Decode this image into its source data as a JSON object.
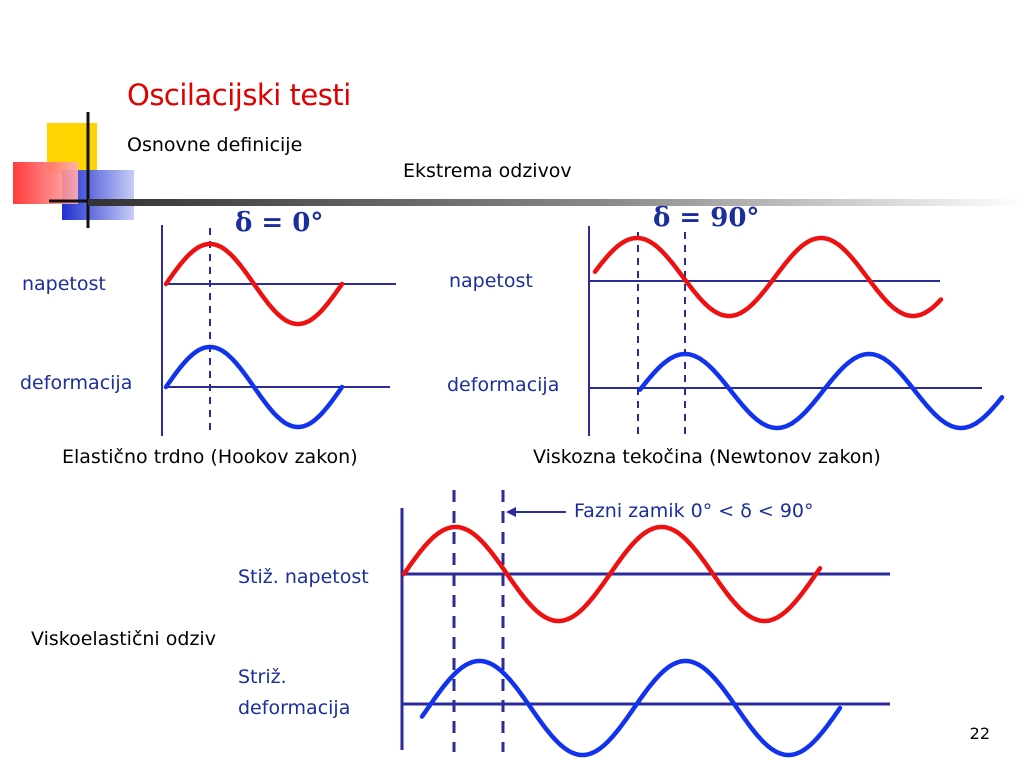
{
  "slide": {
    "title": "Oscilacijski testi",
    "subtitle": "Osnovne definicije",
    "heading": "Ekstrema odzivov",
    "page_number": "22"
  },
  "colors": {
    "accent_title": "#e00000",
    "stress_wave": "#ee1111",
    "strain_wave": "#1133ee",
    "axis": "#2b2b9a",
    "label": "#1b2e9c",
    "deco_yellow": "#ffd400",
    "deco_red": "#ff4a4a",
    "deco_blue": "#2b3bd6"
  },
  "elastic": {
    "delta": "δ = 0°",
    "stress_label": "napetost",
    "strain_label": "deformacija",
    "caption": "Elastično trdno (Hookov zakon)"
  },
  "viscous": {
    "delta": "δ = 90°",
    "stress_label": "napetost",
    "strain_label": "deformacija",
    "caption": "Viskozna tekočina (Newtonov zakon)"
  },
  "viscoelastic": {
    "phase_note": "Fazni zamik 0° < δ < 90°",
    "stress_label": "Stiž. napetost",
    "strain_label_line1": "Striž.",
    "strain_label_line2": "deformacija",
    "caption": "Viskoelastični odziv"
  }
}
